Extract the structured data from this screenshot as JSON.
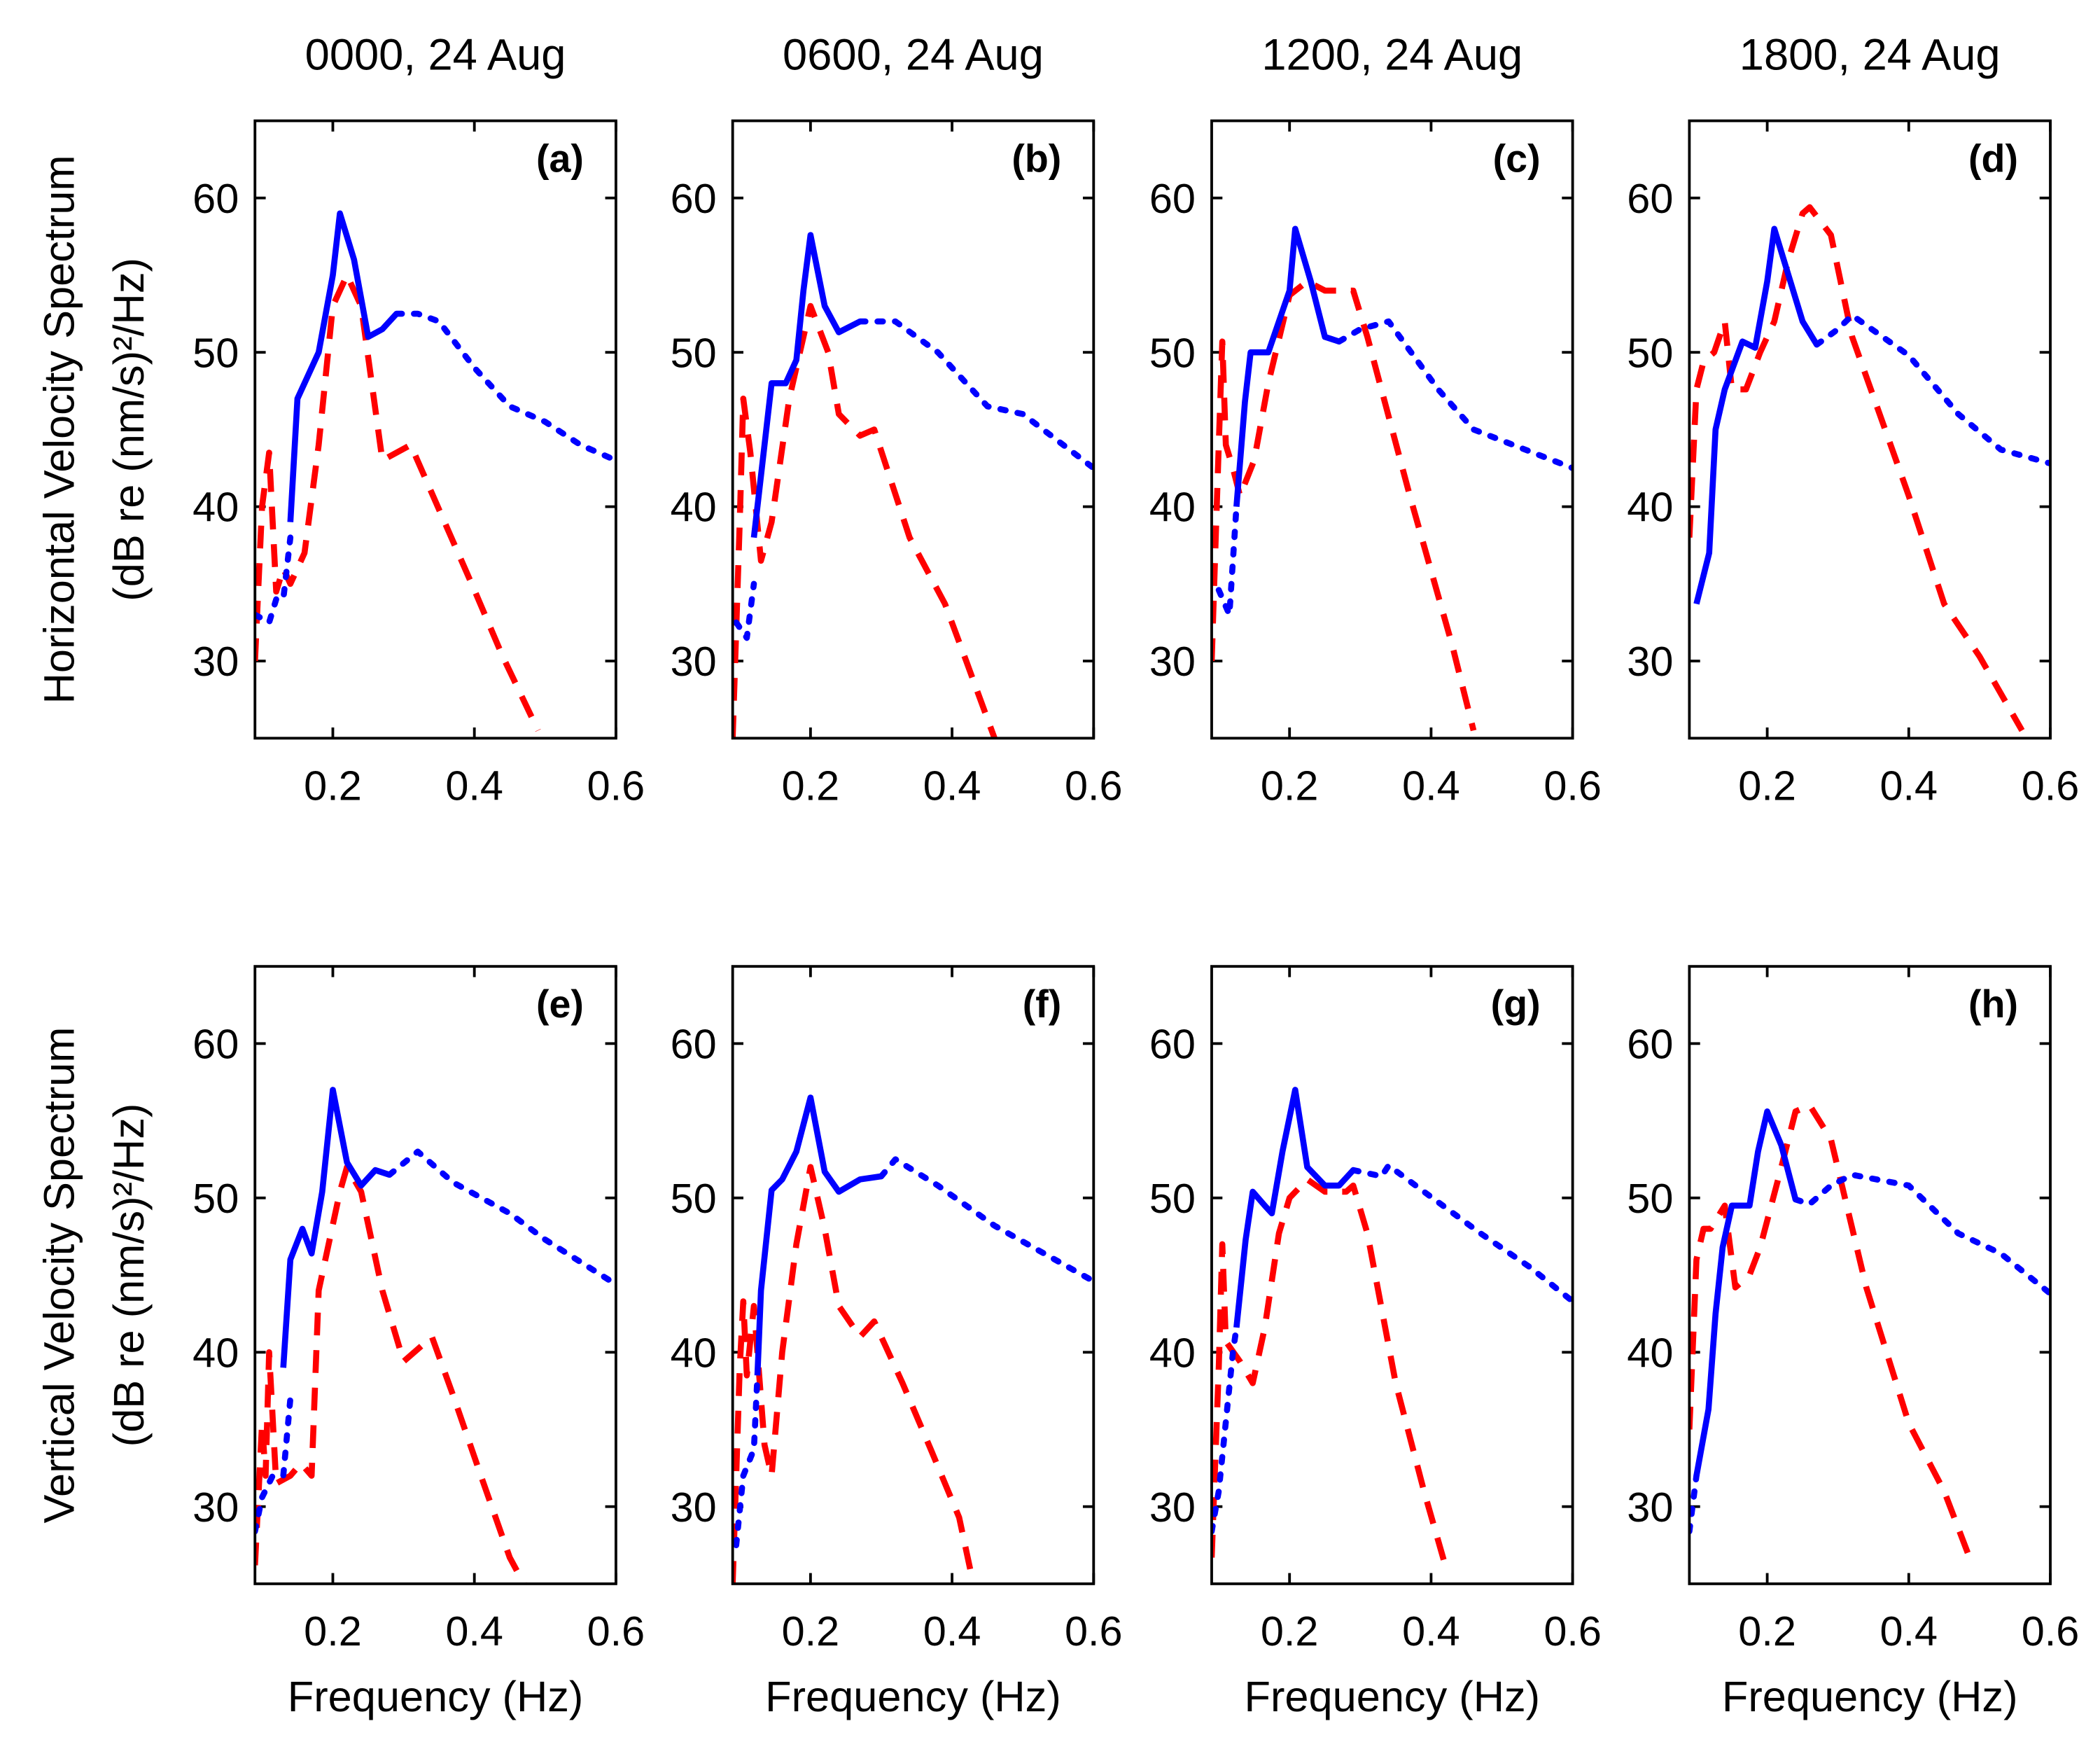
{
  "chart_data": [
    {
      "type": "line",
      "title": "0000, 24 Aug",
      "panel_label": "(a)",
      "ylabel": [
        "Horizontal Velocity Spectrum",
        "(dB re (nm/s)²/Hz)"
      ],
      "xlim": [
        0.09,
        0.6
      ],
      "ylim": [
        25,
        65
      ],
      "xticks": [
        0.2,
        0.4,
        0.6
      ],
      "yticks": [
        30,
        40,
        50,
        60
      ],
      "series": [
        {
          "color": "#ff0000",
          "dash": "dashed",
          "x": [
            0.09,
            0.1,
            0.11,
            0.12,
            0.13,
            0.14,
            0.16,
            0.18,
            0.2,
            0.22,
            0.24,
            0.27,
            0.31,
            0.4,
            0.44,
            0.49
          ],
          "values": [
            30,
            40,
            43.5,
            34.5,
            36,
            35,
            37,
            44,
            53,
            55,
            53,
            43,
            44,
            34.6,
            30.3,
            25.5
          ]
        },
        {
          "color": "#0000ff",
          "dash": "dotted",
          "x": [
            0.09,
            0.11,
            0.12,
            0.13,
            0.14
          ],
          "values": [
            33,
            32.5,
            34,
            34,
            38
          ]
        },
        {
          "color": "#0000ff",
          "dash": "dotted",
          "x": [
            0.29,
            0.32,
            0.35,
            0.4,
            0.45,
            0.5,
            0.55,
            0.6
          ],
          "values": [
            52.5,
            52.5,
            52,
            49,
            46.5,
            45.5,
            44,
            43
          ]
        },
        {
          "color": "#0000ff",
          "dash": "solid",
          "x": [
            0.14,
            0.15,
            0.16,
            0.18,
            0.2,
            0.21,
            0.23,
            0.25,
            0.27,
            0.29
          ],
          "values": [
            39,
            47,
            48,
            50,
            55,
            59,
            56,
            51,
            51.5,
            52.5
          ]
        }
      ]
    },
    {
      "type": "line",
      "title": "0600, 24 Aug",
      "panel_label": "(b)",
      "xlim": [
        0.09,
        0.6
      ],
      "ylim": [
        25,
        65
      ],
      "xticks": [
        0.2,
        0.4,
        0.6
      ],
      "yticks": [
        30,
        40,
        50,
        60
      ],
      "series": [
        {
          "color": "#ff0000",
          "dash": "dashed",
          "x": [
            0.09,
            0.1,
            0.105,
            0.115,
            0.13,
            0.145,
            0.17,
            0.2,
            0.225,
            0.24,
            0.27,
            0.29,
            0.34,
            0.39,
            0.42,
            0.46
          ],
          "values": [
            25,
            39,
            47,
            43.5,
            36.5,
            39,
            47,
            53,
            50,
            46,
            44.6,
            45,
            38,
            33.7,
            30,
            25
          ]
        },
        {
          "color": "#0000ff",
          "dash": "dotted",
          "x": [
            0.095,
            0.11,
            0.12
          ],
          "values": [
            32.5,
            31.5,
            35
          ]
        },
        {
          "color": "#0000ff",
          "dash": "dotted",
          "x": [
            0.27,
            0.32,
            0.38,
            0.45,
            0.5,
            0.6
          ],
          "values": [
            52,
            52,
            50,
            46.5,
            46,
            42.5
          ]
        },
        {
          "color": "#0000ff",
          "dash": "solid",
          "x": [
            0.12,
            0.135,
            0.145,
            0.165,
            0.18,
            0.19,
            0.2,
            0.22,
            0.24,
            0.27
          ],
          "values": [
            38,
            44,
            48,
            48,
            49.5,
            54,
            57.6,
            53,
            51.3,
            52
          ]
        }
      ]
    },
    {
      "type": "line",
      "title": "1200, 24 Aug",
      "panel_label": "(c)",
      "xlim": [
        0.09,
        0.6
      ],
      "ylim": [
        25,
        65
      ],
      "xticks": [
        0.2,
        0.4,
        0.6
      ],
      "yticks": [
        30,
        40,
        50,
        60
      ],
      "series": [
        {
          "color": "#ff0000",
          "dash": "dashed",
          "x": [
            0.09,
            0.1,
            0.105,
            0.11,
            0.12,
            0.13,
            0.15,
            0.17,
            0.2,
            0.225,
            0.25,
            0.29,
            0.31,
            0.37,
            0.43,
            0.46
          ],
          "values": [
            30,
            44,
            50.7,
            44,
            42.5,
            40.7,
            43,
            48,
            53.7,
            54.6,
            54,
            54,
            51,
            40.7,
            31,
            25.5
          ]
        },
        {
          "color": "#0000ff",
          "dash": "dotted",
          "x": [
            0.1,
            0.115,
            0.125
          ],
          "values": [
            34.6,
            33,
            40
          ]
        },
        {
          "color": "#0000ff",
          "dash": "dotted",
          "x": [
            0.27,
            0.3,
            0.34,
            0.41,
            0.46,
            0.6
          ],
          "values": [
            50.7,
            51.5,
            52,
            47.6,
            45,
            42.5
          ]
        },
        {
          "color": "#0000ff",
          "dash": "solid",
          "x": [
            0.125,
            0.137,
            0.145,
            0.17,
            0.2,
            0.208,
            0.23,
            0.25,
            0.27
          ],
          "values": [
            40,
            46.8,
            50,
            50,
            54,
            58,
            54.6,
            51,
            50.7
          ]
        }
      ]
    },
    {
      "type": "line",
      "title": "1800, 24 Aug",
      "panel_label": "(d)",
      "xlim": [
        0.09,
        0.6
      ],
      "ylim": [
        25,
        65
      ],
      "xticks": [
        0.2,
        0.4,
        0.6
      ],
      "yticks": [
        30,
        40,
        50,
        60
      ],
      "series": [
        {
          "color": "#ff0000",
          "dash": "dashed",
          "x": [
            0.09,
            0.1,
            0.11,
            0.125,
            0.14,
            0.15,
            0.17,
            0.19,
            0.21,
            0.23,
            0.25,
            0.26,
            0.29,
            0.32,
            0.4,
            0.45,
            0.5,
            0.56
          ],
          "values": [
            38,
            47.6,
            49.4,
            50,
            52,
            47.6,
            47.6,
            50,
            52,
            56,
            59,
            59.4,
            57.6,
            51,
            40.7,
            33.7,
            30.3,
            25.5
          ]
        },
        {
          "color": "#0000ff",
          "dash": "dotted",
          "x": [
            0.27,
            0.3,
            0.32,
            0.4,
            0.47,
            0.53,
            0.6
          ],
          "values": [
            50.5,
            51.5,
            52.4,
            49.8,
            46,
            43.7,
            42.8
          ]
        },
        {
          "color": "#0000ff",
          "dash": "solid",
          "x": [
            0.1,
            0.118,
            0.127,
            0.14,
            0.165,
            0.183,
            0.2,
            0.21,
            0.23,
            0.25,
            0.27
          ],
          "values": [
            33.7,
            37,
            45,
            47.6,
            50.7,
            50.3,
            54.6,
            58,
            55,
            52,
            50.5
          ]
        }
      ]
    },
    {
      "type": "line",
      "panel_label": "(e)",
      "xlabel": "Frequency (Hz)",
      "ylabel": [
        "Vertical Velocity Spectrum",
        "(dB re (nm/s)²/Hz)"
      ],
      "xlim": [
        0.09,
        0.6
      ],
      "ylim": [
        25,
        65
      ],
      "xticks": [
        0.2,
        0.4,
        0.6
      ],
      "yticks": [
        30,
        40,
        50,
        60
      ],
      "series": [
        {
          "color": "#ff0000",
          "dash": "dashed",
          "x": [
            0.09,
            0.1,
            0.105,
            0.11,
            0.12,
            0.14,
            0.155,
            0.17,
            0.18,
            0.21,
            0.22,
            0.24,
            0.27,
            0.3,
            0.34,
            0.37,
            0.41,
            0.45,
            0.47
          ],
          "values": [
            26.2,
            35.4,
            32,
            40,
            31.5,
            32,
            32.8,
            32,
            44,
            50.4,
            52,
            50.4,
            44,
            39.4,
            41,
            37.2,
            31.9,
            26.7,
            25
          ]
        },
        {
          "color": "#0000ff",
          "dash": "dotted",
          "x": [
            0.09,
            0.1,
            0.115,
            0.13,
            0.14
          ],
          "values": [
            28.4,
            30.6,
            32,
            32,
            37
          ]
        },
        {
          "color": "#0000ff",
          "dash": "dotted",
          "x": [
            0.28,
            0.32,
            0.37,
            0.45,
            0.5,
            0.6
          ],
          "values": [
            51.5,
            53,
            51,
            49,
            47.3,
            44.4
          ]
        },
        {
          "color": "#0000ff",
          "dash": "solid",
          "x": [
            0.13,
            0.14,
            0.157,
            0.17,
            0.185,
            0.2,
            0.22,
            0.24,
            0.26,
            0.28
          ],
          "values": [
            39,
            46,
            48,
            46.4,
            50.4,
            57,
            52.3,
            50.8,
            51.8,
            51.5
          ]
        }
      ]
    },
    {
      "type": "line",
      "panel_label": "(f)",
      "xlabel": "Frequency (Hz)",
      "xlim": [
        0.09,
        0.6
      ],
      "ylim": [
        25,
        65
      ],
      "xticks": [
        0.2,
        0.4,
        0.6
      ],
      "yticks": [
        30,
        40,
        50,
        60
      ],
      "series": [
        {
          "color": "#ff0000",
          "dash": "dashed",
          "x": [
            0.09,
            0.1,
            0.105,
            0.11,
            0.12,
            0.135,
            0.145,
            0.16,
            0.18,
            0.2,
            0.22,
            0.24,
            0.27,
            0.29,
            0.33,
            0.37,
            0.41,
            0.43
          ],
          "values": [
            25,
            39,
            43.3,
            38.5,
            43,
            34,
            32,
            40,
            47,
            52,
            48,
            43,
            41,
            42,
            38,
            33.7,
            29.3,
            25
          ]
        },
        {
          "color": "#0000ff",
          "dash": "dotted",
          "x": [
            0.095,
            0.105,
            0.12,
            0.125
          ],
          "values": [
            27.5,
            32,
            33.7,
            38.5
          ]
        },
        {
          "color": "#0000ff",
          "dash": "dotted",
          "x": [
            0.3,
            0.32,
            0.38,
            0.46,
            0.53,
            0.6
          ],
          "values": [
            51.4,
            52.5,
            50.8,
            48.2,
            46.4,
            44.6
          ]
        },
        {
          "color": "#0000ff",
          "dash": "solid",
          "x": [
            0.125,
            0.13,
            0.145,
            0.16,
            0.18,
            0.2,
            0.22,
            0.24,
            0.27,
            0.3
          ],
          "values": [
            38.5,
            44,
            50.5,
            51.2,
            53,
            56.5,
            51.7,
            50.4,
            51.2,
            51.4
          ]
        }
      ]
    },
    {
      "type": "line",
      "panel_label": "(g)",
      "xlabel": "Frequency (Hz)",
      "xlim": [
        0.09,
        0.6
      ],
      "ylim": [
        25,
        65
      ],
      "xticks": [
        0.2,
        0.4,
        0.6
      ],
      "yticks": [
        30,
        40,
        50,
        60
      ],
      "series": [
        {
          "color": "#ff0000",
          "dash": "dashed",
          "x": [
            0.09,
            0.1,
            0.105,
            0.11,
            0.13,
            0.148,
            0.165,
            0.185,
            0.2,
            0.225,
            0.25,
            0.28,
            0.29,
            0.31,
            0.35,
            0.39,
            0.42
          ],
          "values": [
            26.7,
            39,
            47,
            40.7,
            39.4,
            38,
            41.6,
            47.7,
            50,
            51.2,
            50.4,
            50.4,
            50.8,
            47.7,
            38,
            31,
            26.2
          ]
        },
        {
          "color": "#0000ff",
          "dash": "dotted",
          "x": [
            0.09,
            0.1,
            0.12,
            0.125
          ],
          "values": [
            28.4,
            31,
            40,
            41.6
          ]
        },
        {
          "color": "#0000ff",
          "dash": "dotted",
          "x": [
            0.29,
            0.33,
            0.34,
            0.39,
            0.47,
            0.54,
            0.6
          ],
          "values": [
            51.8,
            51.4,
            52.1,
            50.4,
            47.7,
            45.5,
            43.3
          ]
        },
        {
          "color": "#0000ff",
          "dash": "solid",
          "x": [
            0.125,
            0.138,
            0.148,
            0.165,
            0.175,
            0.19,
            0.208,
            0.225,
            0.25,
            0.27,
            0.29
          ],
          "values": [
            41.6,
            47.3,
            50.4,
            49.5,
            49,
            53,
            57,
            52,
            50.8,
            50.8,
            51.8
          ]
        }
      ]
    },
    {
      "type": "line",
      "panel_label": "(h)",
      "xlabel": "Frequency (Hz)",
      "xlim": [
        0.09,
        0.6
      ],
      "ylim": [
        25,
        65
      ],
      "xticks": [
        0.2,
        0.4,
        0.6
      ],
      "yticks": [
        30,
        40,
        50,
        60
      ],
      "series": [
        {
          "color": "#ff0000",
          "dash": "dashed",
          "x": [
            0.09,
            0.1,
            0.11,
            0.12,
            0.14,
            0.155,
            0.175,
            0.19,
            0.22,
            0.24,
            0.26,
            0.29,
            0.34,
            0.4,
            0.45,
            0.49
          ],
          "values": [
            35,
            46,
            48,
            48,
            49.5,
            44.2,
            45,
            46.8,
            52,
            55.6,
            56,
            53.8,
            44.2,
            35.4,
            31,
            26.2
          ]
        },
        {
          "color": "#0000ff",
          "dash": "dotted",
          "x": [
            0.09,
            0.1
          ],
          "values": [
            28.4,
            32
          ]
        },
        {
          "color": "#0000ff",
          "dash": "dotted",
          "x": [
            0.24,
            0.26,
            0.29,
            0.32,
            0.4,
            0.47,
            0.53,
            0.6
          ],
          "values": [
            49.9,
            49.6,
            50.8,
            51.5,
            50.8,
            47.7,
            46.4,
            43.8
          ]
        },
        {
          "color": "#0000ff",
          "dash": "solid",
          "x": [
            0.1,
            0.117,
            0.127,
            0.137,
            0.15,
            0.175,
            0.187,
            0.2,
            0.22,
            0.24
          ],
          "values": [
            32,
            36.3,
            42.5,
            46.8,
            49.5,
            49.5,
            53,
            55.6,
            53.4,
            49.9
          ]
        }
      ]
    }
  ]
}
